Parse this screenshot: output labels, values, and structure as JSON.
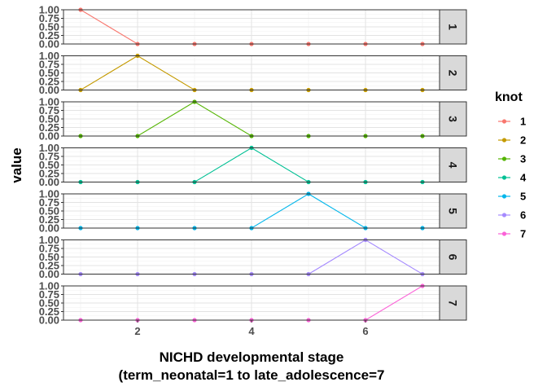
{
  "chart_data": {
    "type": "line",
    "facet_by": "knot",
    "x": [
      1,
      2,
      3,
      4,
      5,
      6,
      7
    ],
    "xticks": [
      2,
      4,
      6
    ],
    "xlim": [
      0.7,
      7.3
    ],
    "ylim": [
      0,
      1
    ],
    "yticks": [
      "0.00",
      "0.25",
      "0.50",
      "0.75",
      "1.00"
    ],
    "xlabel_line1": "NICHD developmental stage",
    "xlabel_line2": "(term_neonatal=1 to late_adolescence=7",
    "ylabel": "value",
    "legend_title": "knot",
    "legend_position": "right",
    "grid": true,
    "series": [
      {
        "name": "1",
        "color": "#F8766D",
        "values": [
          1,
          0,
          0,
          0,
          0,
          0,
          0
        ]
      },
      {
        "name": "2",
        "color": "#C49A00",
        "values": [
          0,
          1,
          0,
          0,
          0,
          0,
          0
        ]
      },
      {
        "name": "3",
        "color": "#53B400",
        "values": [
          0,
          0,
          1,
          0,
          0,
          0,
          0
        ]
      },
      {
        "name": "4",
        "color": "#00C094",
        "values": [
          0,
          0,
          0,
          1,
          0,
          0,
          0
        ]
      },
      {
        "name": "5",
        "color": "#00B6EB",
        "values": [
          0,
          0,
          0,
          0,
          1,
          0,
          0
        ]
      },
      {
        "name": "6",
        "color": "#A58AFF",
        "values": [
          0,
          0,
          0,
          0,
          0,
          1,
          0
        ]
      },
      {
        "name": "7",
        "color": "#FB61D7",
        "values": [
          0,
          0,
          0,
          0,
          0,
          0,
          1
        ]
      }
    ]
  }
}
